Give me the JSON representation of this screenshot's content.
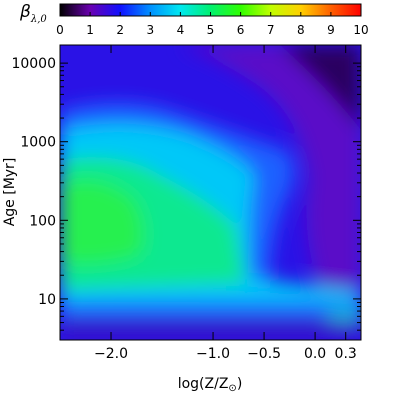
{
  "chart_data": {
    "type": "heatmap",
    "colorbar": {
      "title": "β",
      "title_subscript": "λ,0",
      "range": [
        0,
        10
      ],
      "ticks": [
        0,
        1,
        2,
        3,
        4,
        5,
        6,
        7,
        8,
        9,
        10
      ],
      "colormap": "rainbow: black-purple-blue-cyan-green-yellow-orange-red",
      "colors": [
        "#000000",
        "#6a00b0",
        "#1010ff",
        "#0090ff",
        "#00e8f0",
        "#00f070",
        "#30ff00",
        "#c0ff00",
        "#ffd000",
        "#ff6000",
        "#ff0000"
      ]
    },
    "x_axis": {
      "title": "log(Z/Z",
      "title_symbol": "⊙",
      "title_close": ")",
      "range": [
        -2.5,
        0.45
      ],
      "scale": "linear",
      "ticks": [
        -2.0,
        -1.0,
        -0.5,
        0.0,
        0.3
      ],
      "tick_labels": [
        "−2.0",
        "−1.0",
        "−0.5",
        "0.0",
        "0.3"
      ]
    },
    "y_axis": {
      "title": "Age",
      "unit": "[Myr]",
      "range": [
        3,
        17000
      ],
      "scale": "log",
      "ticks": [
        10,
        100,
        1000,
        10000
      ],
      "tick_labels": [
        "10",
        "100",
        "1000",
        "10000"
      ]
    },
    "grid": false,
    "approx_values": {
      "note_regions": [
        {
          "region": "low metallicity, 30–300 Myr",
          "value": 5.5
        },
        {
          "region": "high age, high metallicity corner",
          "value": 0.5
        },
        {
          "region": "around 500 Myr, log Z < -1",
          "value": 4.0
        },
        {
          "region": "youngest ages (< 5 Myr)",
          "value": 1.2
        },
        {
          "region": "~8 Myr, log Z ≈ 0.3",
          "value": 4.5
        }
      ]
    }
  }
}
